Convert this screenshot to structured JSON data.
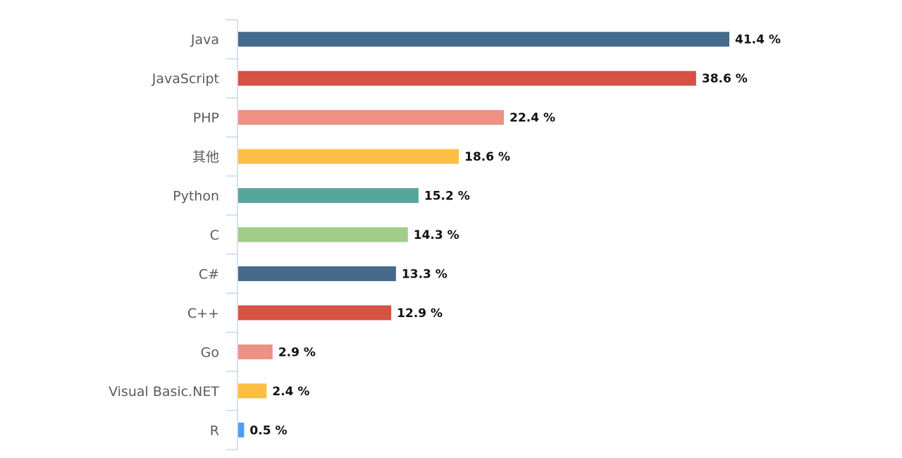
{
  "chart_data": {
    "type": "bar",
    "orientation": "horizontal",
    "title": "",
    "xlabel": "",
    "ylabel": "",
    "grid": false,
    "xlim": [
      0,
      41.4
    ],
    "value_suffix": " %",
    "categories": [
      "Java",
      "JavaScript",
      "PHP",
      "其他",
      "Python",
      "C",
      "C#",
      "C++",
      "Go",
      "Visual Basic.NET",
      "R"
    ],
    "values": [
      41.4,
      38.6,
      22.4,
      18.6,
      15.2,
      14.3,
      13.3,
      12.9,
      2.9,
      2.4,
      0.5
    ],
    "value_labels": [
      "41.4 %",
      "38.6 %",
      "22.4 %",
      "18.6 %",
      "15.2 %",
      "14.3 %",
      "13.3 %",
      "12.9 %",
      "2.9 %",
      "2.4 %",
      "0.5 %"
    ],
    "colors": [
      "#466a8b",
      "#d65344",
      "#ec9184",
      "#fbc043",
      "#57a69b",
      "#a1cc8a",
      "#466a8b",
      "#d65344",
      "#ec9184",
      "#fbc043",
      "#4b9ff7"
    ]
  }
}
